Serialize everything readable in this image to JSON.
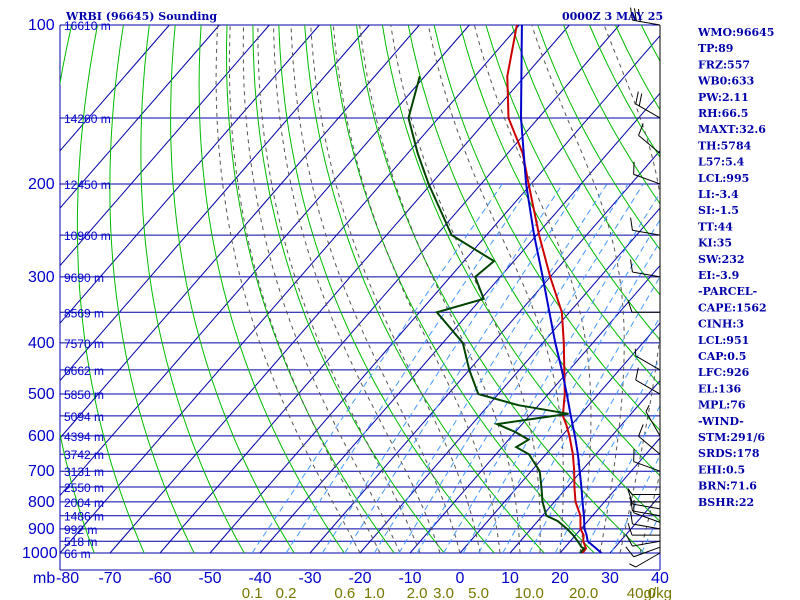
{
  "header": {
    "station": "WRBI (96645) Sounding",
    "time": "0000Z  3 MAY 25"
  },
  "indices": [
    "WMO:96645",
    "TP:89",
    "FRZ:557",
    "WB0:633",
    "PW:2.11",
    "RH:66.5",
    "MAXT:32.6",
    "TH:5784",
    "L57:5.4",
    "LCL:995",
    "LI:-3.4",
    "SI:-1.5",
    "TT:44",
    "KI:35",
    "SW:232",
    "EI:-3.9",
    "-PARCEL-",
    "CAPE:1562",
    "CINH:3",
    "LCL:951",
    "CAP:0.5",
    "LFC:926",
    "EL:136",
    "MPL:76",
    "-WIND-",
    "STM:291/6",
    "SRDS:178",
    "EHI:0.5",
    "BRN:71.6",
    "BSHR:22"
  ],
  "colors": {
    "grid": "#0000aa",
    "temperature": "#cc0000",
    "dewpoint": "#004400",
    "parcel": "#0000cc",
    "dry_adiabat": "#00bb00",
    "moist_adiabat": "#555555",
    "mixing_ratio": "#4499ff",
    "wind": "#000000"
  },
  "chart_data": {
    "type": "line",
    "title": "WRBI (96645) Sounding",
    "xlabel": "",
    "ylabel": "mb",
    "x_axis_unit_label": "mb",
    "xlim": [
      -80,
      40
    ],
    "ylim": [
      1000,
      100
    ],
    "y_scale": "log",
    "pressure_ticks": [
      {
        "p": 100,
        "label": "100"
      },
      {
        "p": 200,
        "label": "200"
      },
      {
        "p": 300,
        "label": "300"
      },
      {
        "p": 400,
        "label": "400"
      },
      {
        "p": 500,
        "label": "500"
      },
      {
        "p": 600,
        "label": "600"
      },
      {
        "p": 700,
        "label": "700"
      },
      {
        "p": 800,
        "label": "800"
      },
      {
        "p": 900,
        "label": "900"
      },
      {
        "p": 1000,
        "label": "1000"
      }
    ],
    "height_labels": [
      {
        "p": 100,
        "label": "16610 m"
      },
      {
        "p": 150,
        "label": "14260 m"
      },
      {
        "p": 200,
        "label": "12450 m"
      },
      {
        "p": 250,
        "label": "10960 m"
      },
      {
        "p": 300,
        "label": "9690 m"
      },
      {
        "p": 350,
        "label": "8569 m"
      },
      {
        "p": 400,
        "label": "7570 m"
      },
      {
        "p": 450,
        "label": "6662 m"
      },
      {
        "p": 500,
        "label": "5850 m"
      },
      {
        "p": 550,
        "label": "5094 m"
      },
      {
        "p": 600,
        "label": "4394 m"
      },
      {
        "p": 650,
        "label": "3742 m"
      },
      {
        "p": 700,
        "label": "3131 m"
      },
      {
        "p": 750,
        "label": "2550 m"
      },
      {
        "p": 800,
        "label": "2004 m"
      },
      {
        "p": 850,
        "label": "1486 m"
      },
      {
        "p": 900,
        "label": "992 m"
      },
      {
        "p": 950,
        "label": "518 m"
      },
      {
        "p": 1000,
        "label": "66 m"
      }
    ],
    "temperature_ticks": [
      {
        "t": -80,
        "label": "-80"
      },
      {
        "t": -70,
        "label": "-70"
      },
      {
        "t": -60,
        "label": "-60"
      },
      {
        "t": -50,
        "label": "-50"
      },
      {
        "t": -40,
        "label": "-40"
      },
      {
        "t": -30,
        "label": "-30"
      },
      {
        "t": -20,
        "label": "-20"
      },
      {
        "t": -10,
        "label": "-10"
      },
      {
        "t": 0,
        "label": "0"
      },
      {
        "t": 10,
        "label": "10"
      },
      {
        "t": 20,
        "label": "20"
      },
      {
        "t": 30,
        "label": "30"
      },
      {
        "t": 40,
        "label": "40"
      }
    ],
    "mixing_ratio_labels": [
      {
        "w": 0.1,
        "label": "0.1"
      },
      {
        "w": 0.2,
        "label": "0.2"
      },
      {
        "w": 0.6,
        "label": "0.6"
      },
      {
        "w": 1.0,
        "label": "1.0"
      },
      {
        "w": 2.0,
        "label": "2.0"
      },
      {
        "w": 3.0,
        "label": "3.0"
      },
      {
        "w": 5.0,
        "label": "5.0"
      },
      {
        "w": 10.0,
        "label": "10.0"
      },
      {
        "w": 20.0,
        "label": "20.0"
      },
      {
        "w": 40.0,
        "label": "40.0"
      }
    ],
    "mixing_ratio_unit": "g/kg",
    "series": [
      {
        "key": "temperature",
        "points": [
          {
            "p": 1000,
            "t": 24.5
          },
          {
            "p": 980,
            "t": 24.4
          },
          {
            "p": 950,
            "t": 22.6
          },
          {
            "p": 925,
            "t": 21.6
          },
          {
            "p": 900,
            "t": 19.9
          },
          {
            "p": 850,
            "t": 17.6
          },
          {
            "p": 800,
            "t": 14.2
          },
          {
            "p": 750,
            "t": 11.4
          },
          {
            "p": 700,
            "t": 8.6
          },
          {
            "p": 650,
            "t": 5.4
          },
          {
            "p": 600,
            "t": 1.5
          },
          {
            "p": 570,
            "t": -1.2
          },
          {
            "p": 550,
            "t": -3.3
          },
          {
            "p": 500,
            "t": -6.7
          },
          {
            "p": 450,
            "t": -11.0
          },
          {
            "p": 400,
            "t": -15.8
          },
          {
            "p": 350,
            "t": -21.5
          },
          {
            "p": 300,
            "t": -30.0
          },
          {
            "p": 250,
            "t": -39.5
          },
          {
            "p": 200,
            "t": -50.5
          },
          {
            "p": 175,
            "t": -57.0
          },
          {
            "p": 150,
            "t": -66.0
          },
          {
            "p": 125,
            "t": -73.5
          },
          {
            "p": 100,
            "t": -80.5
          }
        ]
      },
      {
        "key": "dewpoint",
        "points": [
          {
            "p": 1000,
            "t": 24.0
          },
          {
            "p": 980,
            "t": 24.0
          },
          {
            "p": 975,
            "t": 23.3
          },
          {
            "p": 950,
            "t": 21.5
          },
          {
            "p": 925,
            "t": 19.5
          },
          {
            "p": 900,
            "t": 17.2
          },
          {
            "p": 870,
            "t": 14.0
          },
          {
            "p": 850,
            "t": 10.8
          },
          {
            "p": 800,
            "t": 7.6
          },
          {
            "p": 750,
            "t": 4.8
          },
          {
            "p": 700,
            "t": 1.7
          },
          {
            "p": 650,
            "t": -3.4
          },
          {
            "p": 630,
            "t": -7.2
          },
          {
            "p": 610,
            "t": -6.0
          },
          {
            "p": 590,
            "t": -10.0
          },
          {
            "p": 570,
            "t": -15.0
          },
          {
            "p": 545,
            "t": -2.5
          },
          {
            "p": 525,
            "t": -14.0
          },
          {
            "p": 500,
            "t": -24.0
          },
          {
            "p": 450,
            "t": -30.0
          },
          {
            "p": 400,
            "t": -36.0
          },
          {
            "p": 350,
            "t": -46.5
          },
          {
            "p": 330,
            "t": -39.5
          },
          {
            "p": 300,
            "t": -45.0
          },
          {
            "p": 280,
            "t": -44.0
          },
          {
            "p": 250,
            "t": -57.0
          },
          {
            "p": 200,
            "t": -70.5
          },
          {
            "p": 175,
            "t": -78.0
          },
          {
            "p": 150,
            "t": -86.0
          },
          {
            "p": 125,
            "t": -91.0
          }
        ]
      },
      {
        "key": "parcel",
        "points": [
          {
            "p": 1000,
            "t": 28.3
          },
          {
            "p": 950,
            "t": 23.5
          },
          {
            "p": 925,
            "t": 22.2
          },
          {
            "p": 900,
            "t": 20.7
          },
          {
            "p": 850,
            "t": 18.3
          },
          {
            "p": 800,
            "t": 15.6
          },
          {
            "p": 750,
            "t": 12.8
          },
          {
            "p": 700,
            "t": 9.7
          },
          {
            "p": 650,
            "t": 6.4
          },
          {
            "p": 600,
            "t": 2.6
          },
          {
            "p": 550,
            "t": -1.7
          },
          {
            "p": 500,
            "t": -6.3
          },
          {
            "p": 450,
            "t": -11.5
          },
          {
            "p": 400,
            "t": -17.5
          },
          {
            "p": 350,
            "t": -24.0
          },
          {
            "p": 300,
            "t": -31.5
          },
          {
            "p": 250,
            "t": -40.5
          },
          {
            "p": 200,
            "t": -51.0
          },
          {
            "p": 150,
            "t": -63.5
          },
          {
            "p": 100,
            "t": -79.5
          }
        ]
      }
    ],
    "wind": [
      {
        "p": 1000,
        "dir": 240,
        "spd": 5
      },
      {
        "p": 975,
        "dir": 250,
        "spd": 10
      },
      {
        "p": 950,
        "dir": 260,
        "spd": 10
      },
      {
        "p": 925,
        "dir": 270,
        "spd": 10
      },
      {
        "p": 900,
        "dir": 280,
        "spd": 10
      },
      {
        "p": 875,
        "dir": 290,
        "spd": 10
      },
      {
        "p": 850,
        "dir": 280,
        "spd": 10
      },
      {
        "p": 825,
        "dir": 280,
        "spd": 5
      },
      {
        "p": 800,
        "dir": 270,
        "spd": 10
      },
      {
        "p": 775,
        "dir": 270,
        "spd": 5
      },
      {
        "p": 700,
        "dir": 290,
        "spd": 10
      },
      {
        "p": 650,
        "dir": 310,
        "spd": 10
      },
      {
        "p": 600,
        "dir": 330,
        "spd": 5
      },
      {
        "p": 500,
        "dir": 300,
        "spd": 10
      },
      {
        "p": 450,
        "dir": 300,
        "spd": 5
      },
      {
        "p": 350,
        "dir": 270,
        "spd": 10
      },
      {
        "p": 300,
        "dir": 280,
        "spd": 10
      },
      {
        "p": 250,
        "dir": 280,
        "spd": 10
      },
      {
        "p": 200,
        "dir": 290,
        "spd": 10
      },
      {
        "p": 175,
        "dir": 310,
        "spd": 10
      },
      {
        "p": 150,
        "dir": 300,
        "spd": 20
      },
      {
        "p": 100,
        "dir": 280,
        "spd": 30
      }
    ]
  }
}
